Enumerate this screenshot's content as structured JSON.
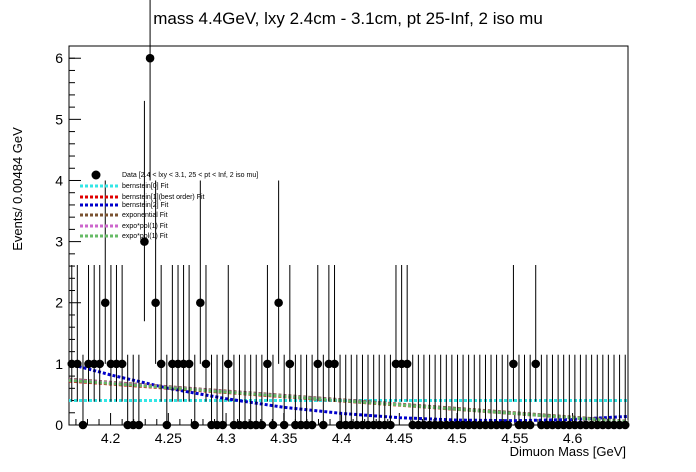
{
  "chart_data": {
    "type": "scatter",
    "title": "mass 4.4GeV, lxy 2.4cm - 3.1cm, pt 25-Inf, 2 iso mu",
    "xlabel": "Dimuon Mass [GeV]",
    "ylabel": "Events/ 0.00484 GeV",
    "xlim": [
      4.164,
      4.648
    ],
    "ylim": [
      0,
      6.2
    ],
    "xticks": [
      "4.2",
      "4.25",
      "4.3",
      "4.35",
      "4.4",
      "4.45",
      "4.5",
      "4.55",
      "4.6"
    ],
    "yticks": [
      "0",
      "1",
      "2",
      "3",
      "4",
      "5",
      "6"
    ],
    "grid": false,
    "legend_position": "upper-left",
    "data_series": {
      "name": "Data [2.4 < lxy < 3.1, 25 < pt < Inf, 2 iso mu]",
      "x": [
        4.1664,
        4.1712,
        4.1761,
        4.1809,
        4.1858,
        4.1906,
        4.1954,
        4.2003,
        4.2051,
        4.21,
        4.2148,
        4.2196,
        4.2245,
        4.2293,
        4.2342,
        4.239,
        4.2438,
        4.2487,
        4.2535,
        4.2584,
        4.2632,
        4.268,
        4.2729,
        4.2777,
        4.2826,
        4.2874,
        4.2922,
        4.2971,
        4.3019,
        4.3068,
        4.3116,
        4.3164,
        4.3213,
        4.3261,
        4.331,
        4.3358,
        4.3406,
        4.3455,
        4.3503,
        4.3552,
        4.36,
        4.3648,
        4.3697,
        4.3745,
        4.3794,
        4.3842,
        4.389,
        4.3939,
        4.3987,
        4.4036,
        4.4084,
        4.4132,
        4.4181,
        4.4229,
        4.4278,
        4.4326,
        4.4374,
        4.4423,
        4.4471,
        4.452,
        4.4568,
        4.4616,
        4.4665,
        4.4713,
        4.4762,
        4.481,
        4.4858,
        4.4907,
        4.4955,
        4.5004,
        4.5052,
        4.51,
        4.5149,
        4.5197,
        4.5246,
        4.5294,
        4.5342,
        4.5391,
        4.5439,
        4.5488,
        4.5536,
        4.5584,
        4.5633,
        4.5681,
        4.573,
        4.5778,
        4.5826,
        4.5875,
        4.5923,
        4.5972,
        4.602,
        4.6068,
        4.6117,
        4.6165,
        4.6214,
        4.6262,
        4.631,
        4.6359,
        4.6407,
        4.6456
      ],
      "y": [
        1,
        1,
        0,
        1,
        1,
        1,
        2,
        1,
        1,
        1,
        0,
        0,
        0,
        3,
        6,
        2,
        1,
        0,
        1,
        1,
        1,
        1,
        0,
        2,
        1,
        0,
        0,
        0,
        1,
        0,
        0,
        0,
        0,
        0,
        0,
        1,
        0,
        2,
        0,
        1,
        0,
        0,
        0,
        0,
        1,
        0,
        1,
        1,
        0,
        0,
        0,
        0,
        0,
        0,
        0,
        0,
        0,
        0,
        1,
        1,
        1,
        0,
        0,
        0,
        0,
        0,
        0,
        0,
        0,
        0,
        0,
        0,
        0,
        0,
        0,
        0,
        0,
        0,
        0,
        1,
        0,
        0,
        0,
        1,
        0,
        0,
        0,
        0,
        0,
        0,
        0,
        0,
        0,
        0,
        0,
        0,
        0,
        0,
        0,
        0
      ]
    },
    "series": [
      {
        "name": "bernstein[0] Fit",
        "color": "#33e6e6",
        "dash": "dotted",
        "x": [
          4.164,
          4.648
        ],
        "y": [
          0.4,
          0.4
        ]
      },
      {
        "name": "bernstein[1](best order) Fit",
        "color": "#e00000",
        "dash": "dotted",
        "x": [
          4.164,
          4.648
        ],
        "y": [
          0.72,
          0.05
        ]
      },
      {
        "name": "bernstein[2] Fit",
        "color": "#0000cc",
        "dash": "dotted",
        "x": [
          4.164,
          4.2,
          4.25,
          4.3,
          4.35,
          4.4,
          4.45,
          4.5,
          4.55,
          4.6,
          4.648
        ],
        "y": [
          1.0,
          0.82,
          0.6,
          0.43,
          0.29,
          0.19,
          0.12,
          0.08,
          0.07,
          0.09,
          0.14
        ]
      },
      {
        "name": "exponential Fit",
        "color": "#7a5230",
        "dash": "dotted",
        "x": [
          4.164,
          4.648
        ],
        "y": [
          0.75,
          0.06
        ]
      },
      {
        "name": "expo*pol(1) Fit",
        "color": "#cc66cc",
        "dash": "dotted",
        "x": [
          4.164,
          4.648
        ],
        "y": [
          0.74,
          0.05
        ]
      },
      {
        "name": "expo*pol(1) Fit",
        "color": "#66bb66",
        "dash": "dotted",
        "x": [
          4.164,
          4.648
        ],
        "y": [
          0.73,
          0.05
        ]
      }
    ]
  },
  "legend": {
    "data_label": "Data [2.4 < lxy < 3.1, 25 < pt < Inf, 2 iso mu]",
    "entries": [
      {
        "label": "bernstein[0] Fit",
        "color": "#33e6e6",
        "text_color": "#000000"
      },
      {
        "label": "bernstein[1](best order) Fit",
        "color": "#e00000",
        "text_color": "#e00000"
      },
      {
        "label": "bernstein[2] Fit",
        "color": "#0000cc",
        "text_color": "#000000"
      },
      {
        "label": "exponential Fit",
        "color": "#7a5230",
        "text_color": "#000000"
      },
      {
        "label": "expo*pol(1) Fit",
        "color": "#cc66cc",
        "text_color": "#000000"
      },
      {
        "label": "expo*pol(1) Fit",
        "color": "#66bb66",
        "text_color": "#000000"
      }
    ]
  }
}
